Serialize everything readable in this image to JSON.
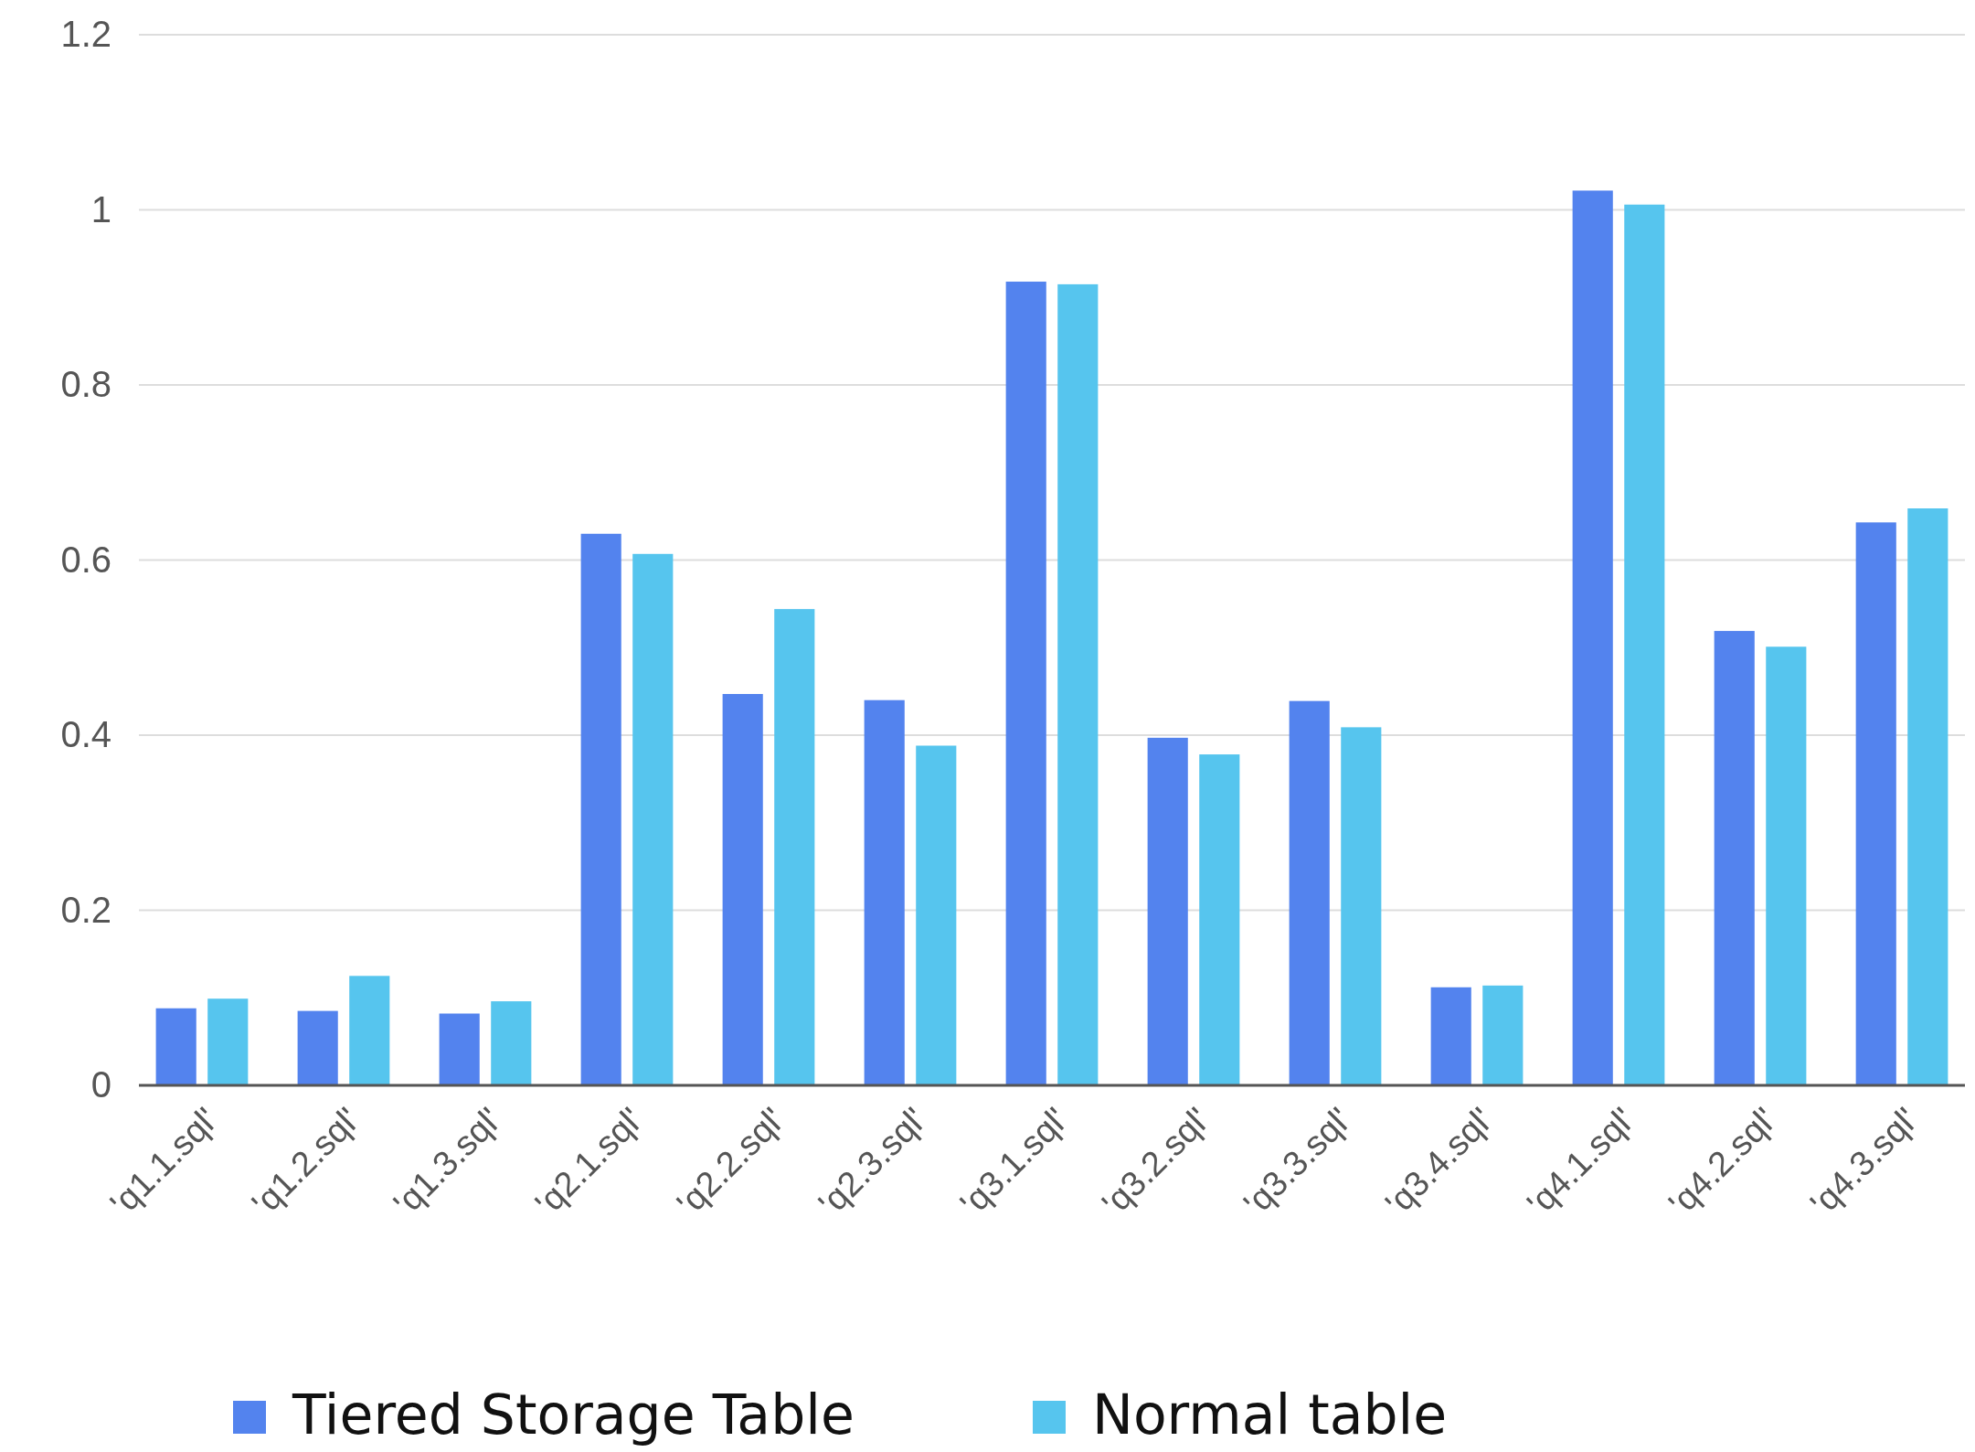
{
  "chart_data": {
    "type": "bar",
    "categories": [
      "'q1.1.sql'",
      "'q1.2.sql'",
      "'q1.3.sql'",
      "'q2.1.sql'",
      "'q2.2.sql'",
      "'q2.3.sql'",
      "'q3.1.sql'",
      "'q3.2.sql'",
      "'q3.3.sql'",
      "'q3.4.sql'",
      "'q4.1.sql'",
      "'q4.2.sql'",
      "'q4.3.sql'"
    ],
    "series": [
      {
        "name": "Tiered Storage Table",
        "color": "#5383ee",
        "values": [
          0.088,
          0.085,
          0.082,
          0.63,
          0.447,
          0.44,
          0.918,
          0.397,
          0.439,
          0.112,
          1.022,
          0.519,
          0.643
        ]
      },
      {
        "name": "Normal table",
        "color": "#56c5ee",
        "values": [
          0.099,
          0.125,
          0.096,
          0.607,
          0.544,
          0.388,
          0.915,
          0.378,
          0.409,
          0.114,
          1.006,
          0.501,
          0.659
        ]
      }
    ],
    "ylim": [
      0,
      1.2
    ],
    "yticks": [
      0,
      0.2,
      0.4,
      0.6,
      0.8,
      1,
      1.2
    ],
    "grid": "y",
    "legend": "bottom"
  }
}
